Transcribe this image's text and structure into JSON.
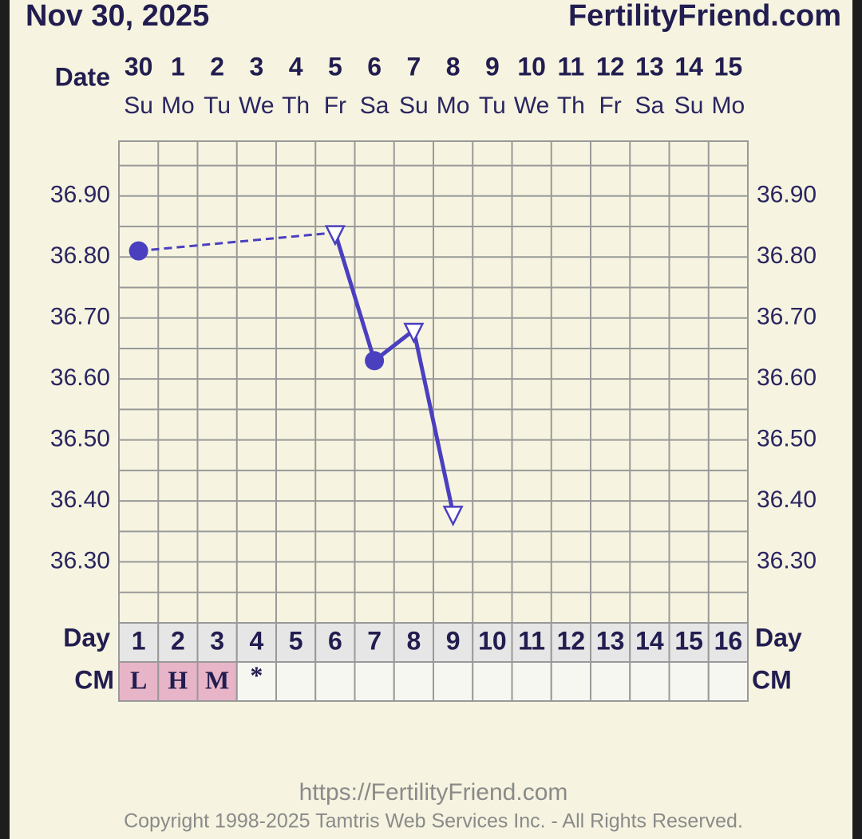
{
  "chart_data": {
    "type": "line",
    "title": "Nov 30, 2025",
    "site": "FertilityFriend.com",
    "date_label": "Date",
    "dates": [
      "30",
      "1",
      "2",
      "3",
      "4",
      "5",
      "6",
      "7",
      "8",
      "9",
      "10",
      "11",
      "12",
      "13",
      "14",
      "15"
    ],
    "weekdays": [
      "Su",
      "Mo",
      "Tu",
      "We",
      "Th",
      "Fr",
      "Sa",
      "Su",
      "Mo",
      "Tu",
      "We",
      "Th",
      "Fr",
      "Sa",
      "Su",
      "Mo"
    ],
    "day_label": "Day",
    "categories": [
      "1",
      "2",
      "3",
      "4",
      "5",
      "6",
      "7",
      "8",
      "9",
      "10",
      "11",
      "12",
      "13",
      "14",
      "15",
      "16"
    ],
    "series": [
      {
        "color": "#4a3fbf",
        "values": [
          36.81,
          null,
          null,
          null,
          null,
          36.84,
          36.63,
          36.68,
          36.38,
          null,
          null,
          null,
          null,
          null,
          null,
          null
        ],
        "markers": [
          "circle",
          null,
          null,
          null,
          null,
          "triangle",
          "circle",
          "triangle",
          "triangle",
          null,
          null,
          null,
          null,
          null,
          null,
          null
        ]
      }
    ],
    "ylim": [
      36.2,
      36.99
    ],
    "yticks": [
      {
        "value": 36.3,
        "label": "36.30"
      },
      {
        "value": 36.4,
        "label": "36.40"
      },
      {
        "value": 36.5,
        "label": "36.50"
      },
      {
        "value": 36.6,
        "label": "36.60"
      },
      {
        "value": 36.7,
        "label": "36.70"
      },
      {
        "value": 36.8,
        "label": "36.80"
      },
      {
        "value": 36.9,
        "label": "36.90"
      }
    ],
    "grid": true,
    "cm_label": "CM",
    "cm": [
      "L",
      "H",
      "M",
      "*",
      null,
      null,
      null,
      null,
      null,
      null,
      null,
      null,
      null,
      null,
      null,
      null
    ],
    "cm_color": "#e8b4c8",
    "footer_url": "https://FertilityFriend.com",
    "copyright": "Copyright 1998-2025 Tamtris Web Services Inc. - All Rights Reserved."
  }
}
